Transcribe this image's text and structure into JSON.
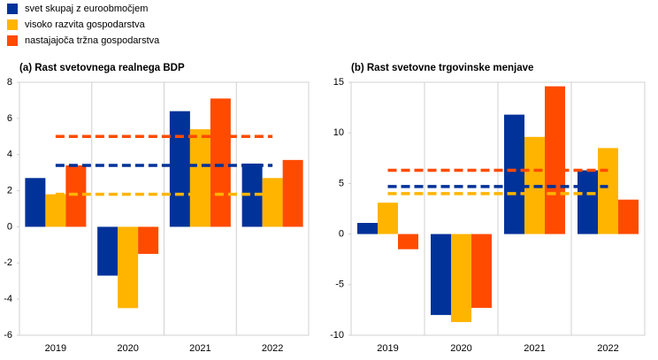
{
  "chart_data": [
    {
      "type": "bar",
      "title": "(a) Rast svetovnega realnega BDP",
      "categories": [
        "2019",
        "2020",
        "2021",
        "2022"
      ],
      "series": [
        {
          "name": "svet skupaj z euroobmočjem",
          "color": "#003299",
          "values": [
            2.7,
            -2.7,
            6.4,
            3.5
          ]
        },
        {
          "name": "visoko razvita gospodarstva",
          "color": "#ffb400",
          "values": [
            1.8,
            -4.5,
            5.4,
            2.7
          ]
        },
        {
          "name": "nastajajoča tržna gospodarstva",
          "color": "#ff4b00",
          "values": [
            3.4,
            -1.5,
            7.1,
            3.7
          ]
        }
      ],
      "reference_lines": [
        {
          "color": "#ff4b00",
          "value": 5.0
        },
        {
          "color": "#003299",
          "value": 3.4
        },
        {
          "color": "#ffb400",
          "value": 1.8
        }
      ],
      "ylim": [
        -6,
        8
      ],
      "yticks": [
        -6,
        -4,
        -2,
        0,
        2,
        4,
        6,
        8
      ]
    },
    {
      "type": "bar",
      "title": "(b) Rast svetovne trgovinske menjave",
      "categories": [
        "2019",
        "2020",
        "2021",
        "2022"
      ],
      "series": [
        {
          "color": "#003299",
          "values": [
            1.1,
            -8.0,
            11.8,
            6.3
          ]
        },
        {
          "color": "#ffb400",
          "values": [
            3.1,
            -8.7,
            9.6,
            8.5
          ]
        },
        {
          "color": "#ff4b00",
          "values": [
            -1.5,
            -7.3,
            14.6,
            3.4
          ]
        }
      ],
      "reference_lines": [
        {
          "color": "#ff4b00",
          "value": 6.3
        },
        {
          "color": "#003299",
          "value": 4.7
        },
        {
          "color": "#ffb400",
          "value": 4.0
        }
      ],
      "ylim": [
        -10,
        15
      ],
      "yticks": [
        -10,
        -5,
        0,
        5,
        10,
        15
      ]
    }
  ]
}
